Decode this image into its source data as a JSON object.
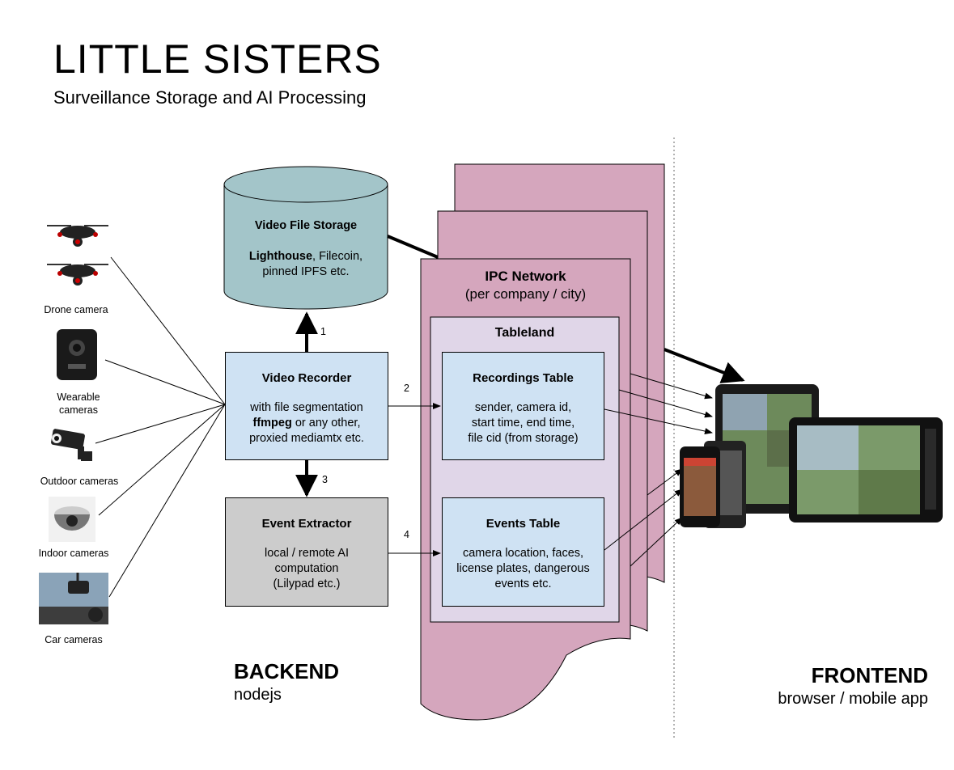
{
  "header": {
    "title": "LITTLE SISTERS",
    "subtitle": "Surveillance Storage and AI Processing"
  },
  "storage": {
    "title": "Video File Storage",
    "line1_bold": "Lighthouse",
    "line1_rest": ", Filecoin,",
    "line2": "pinned IPFS etc."
  },
  "recorder": {
    "title": "Video Recorder",
    "line1": "with file segmentation",
    "line2_bold": "ffmpeg",
    "line2_rest": " or any other,",
    "line3": "proxied mediamtx etc."
  },
  "extractor": {
    "title": "Event Extractor",
    "line1": "local / remote AI",
    "line2": "computation",
    "line3": "(Lilypad etc.)"
  },
  "ipc": {
    "title": "IPC Network",
    "subtitle": "(per company / city)"
  },
  "tableland": {
    "title": "Tableland"
  },
  "recordings_table": {
    "title": "Recordings Table",
    "line1": "sender, camera id,",
    "line2": "start time, end time,",
    "line3": "file cid (from storage)"
  },
  "events_table": {
    "title": "Events Table",
    "line1": "camera location, faces,",
    "line2": "license plates, dangerous",
    "line3": "events etc."
  },
  "cameras": [
    {
      "label": "Drone camera",
      "icon": "drone-camera-icon"
    },
    {
      "label": "Wearable\ncameras",
      "icon": "wearable-camera-icon"
    },
    {
      "label": "Outdoor cameras",
      "icon": "outdoor-camera-icon"
    },
    {
      "label": "Indoor cameras",
      "icon": "indoor-camera-icon"
    },
    {
      "label": "Car cameras",
      "icon": "car-camera-icon"
    }
  ],
  "arrow_labels": {
    "a1": "1",
    "a2": "2",
    "a3": "3",
    "a4": "4"
  },
  "backend": {
    "title": "BACKEND",
    "subtitle": "nodejs"
  },
  "frontend": {
    "title": "FRONTEND",
    "subtitle": "browser / mobile app"
  },
  "colors": {
    "storage_fill": "#a3c5c9",
    "recorder_fill": "#cfe2f3",
    "extractor_fill": "#cccccc",
    "ipc_fill": "#d5a6bd",
    "tableland_fill": "#e0d6e8",
    "table_fill": "#cfe2f3"
  }
}
